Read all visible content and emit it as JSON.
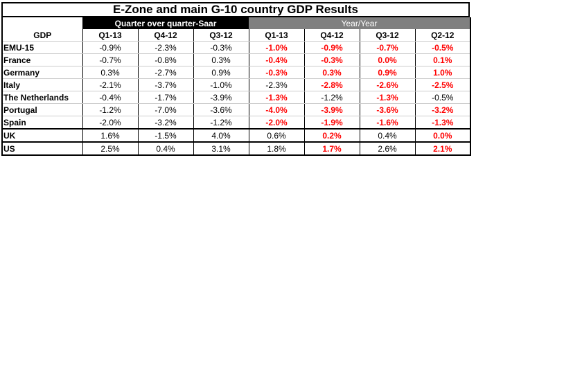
{
  "title": "E-Zone and main G-10 country GDP Results",
  "groups": {
    "qoq": "Quarter over quarter-Saar",
    "yoy": "Year/Year"
  },
  "header": {
    "label": "GDP",
    "qoq_cols": [
      "Q1-13",
      "Q4-12",
      "Q3-12"
    ],
    "yoy_cols": [
      "Q1-13",
      "Q4-12",
      "Q3-12",
      "Q2-12"
    ]
  },
  "rows": [
    {
      "label": "EMU-15",
      "qoq": [
        "-0.9%",
        "-2.3%",
        "-0.3%"
      ],
      "yoy": [
        "-1.0%",
        "-0.9%",
        "-0.7%",
        "-0.5%"
      ],
      "yoy_red": [
        true,
        true,
        true,
        true
      ]
    },
    {
      "label": "France",
      "qoq": [
        "-0.7%",
        "-0.8%",
        "0.3%"
      ],
      "yoy": [
        "-0.4%",
        "-0.3%",
        "0.0%",
        "0.1%"
      ],
      "yoy_red": [
        true,
        true,
        true,
        true
      ]
    },
    {
      "label": "Germany",
      "qoq": [
        "0.3%",
        "-2.7%",
        "0.9%"
      ],
      "yoy": [
        "-0.3%",
        "0.3%",
        "0.9%",
        "1.0%"
      ],
      "yoy_red": [
        true,
        true,
        true,
        true
      ]
    },
    {
      "label": "Italy",
      "qoq": [
        "-2.1%",
        "-3.7%",
        "-1.0%"
      ],
      "yoy": [
        "-2.3%",
        "-2.8%",
        "-2.6%",
        "-2.5%"
      ],
      "yoy_red": [
        false,
        true,
        true,
        true
      ]
    },
    {
      "label": "The Netherlands",
      "qoq": [
        "-0.4%",
        "-1.7%",
        "-3.9%"
      ],
      "yoy": [
        "-1.3%",
        "-1.2%",
        "-1.3%",
        "-0.5%"
      ],
      "yoy_red": [
        true,
        false,
        true,
        false
      ]
    },
    {
      "label": "Portugal",
      "qoq": [
        "-1.2%",
        "-7.0%",
        "-3.6%"
      ],
      "yoy": [
        "-4.0%",
        "-3.9%",
        "-3.6%",
        "-3.2%"
      ],
      "yoy_red": [
        true,
        true,
        true,
        true
      ]
    },
    {
      "label": "Spain",
      "qoq": [
        "-2.0%",
        "-3.2%",
        "-1.2%"
      ],
      "yoy": [
        "-2.0%",
        "-1.9%",
        "-1.6%",
        "-1.3%"
      ],
      "yoy_red": [
        true,
        true,
        true,
        true
      ]
    }
  ],
  "extra_rows": [
    {
      "label": "UK",
      "qoq": [
        "1.6%",
        "-1.5%",
        "4.0%"
      ],
      "yoy": [
        "0.6%",
        "0.2%",
        "0.4%",
        "0.0%"
      ],
      "yoy_red": [
        false,
        true,
        false,
        true
      ]
    },
    {
      "label": "US",
      "qoq": [
        "2.5%",
        "0.4%",
        "3.1%"
      ],
      "yoy": [
        "1.8%",
        "1.7%",
        "2.6%",
        "2.1%"
      ],
      "yoy_red": [
        false,
        true,
        false,
        true
      ]
    }
  ],
  "colors": {
    "negative_highlight": "#ff0000",
    "qoq_header_bg": "#000000",
    "yoy_header_bg": "#808080"
  }
}
